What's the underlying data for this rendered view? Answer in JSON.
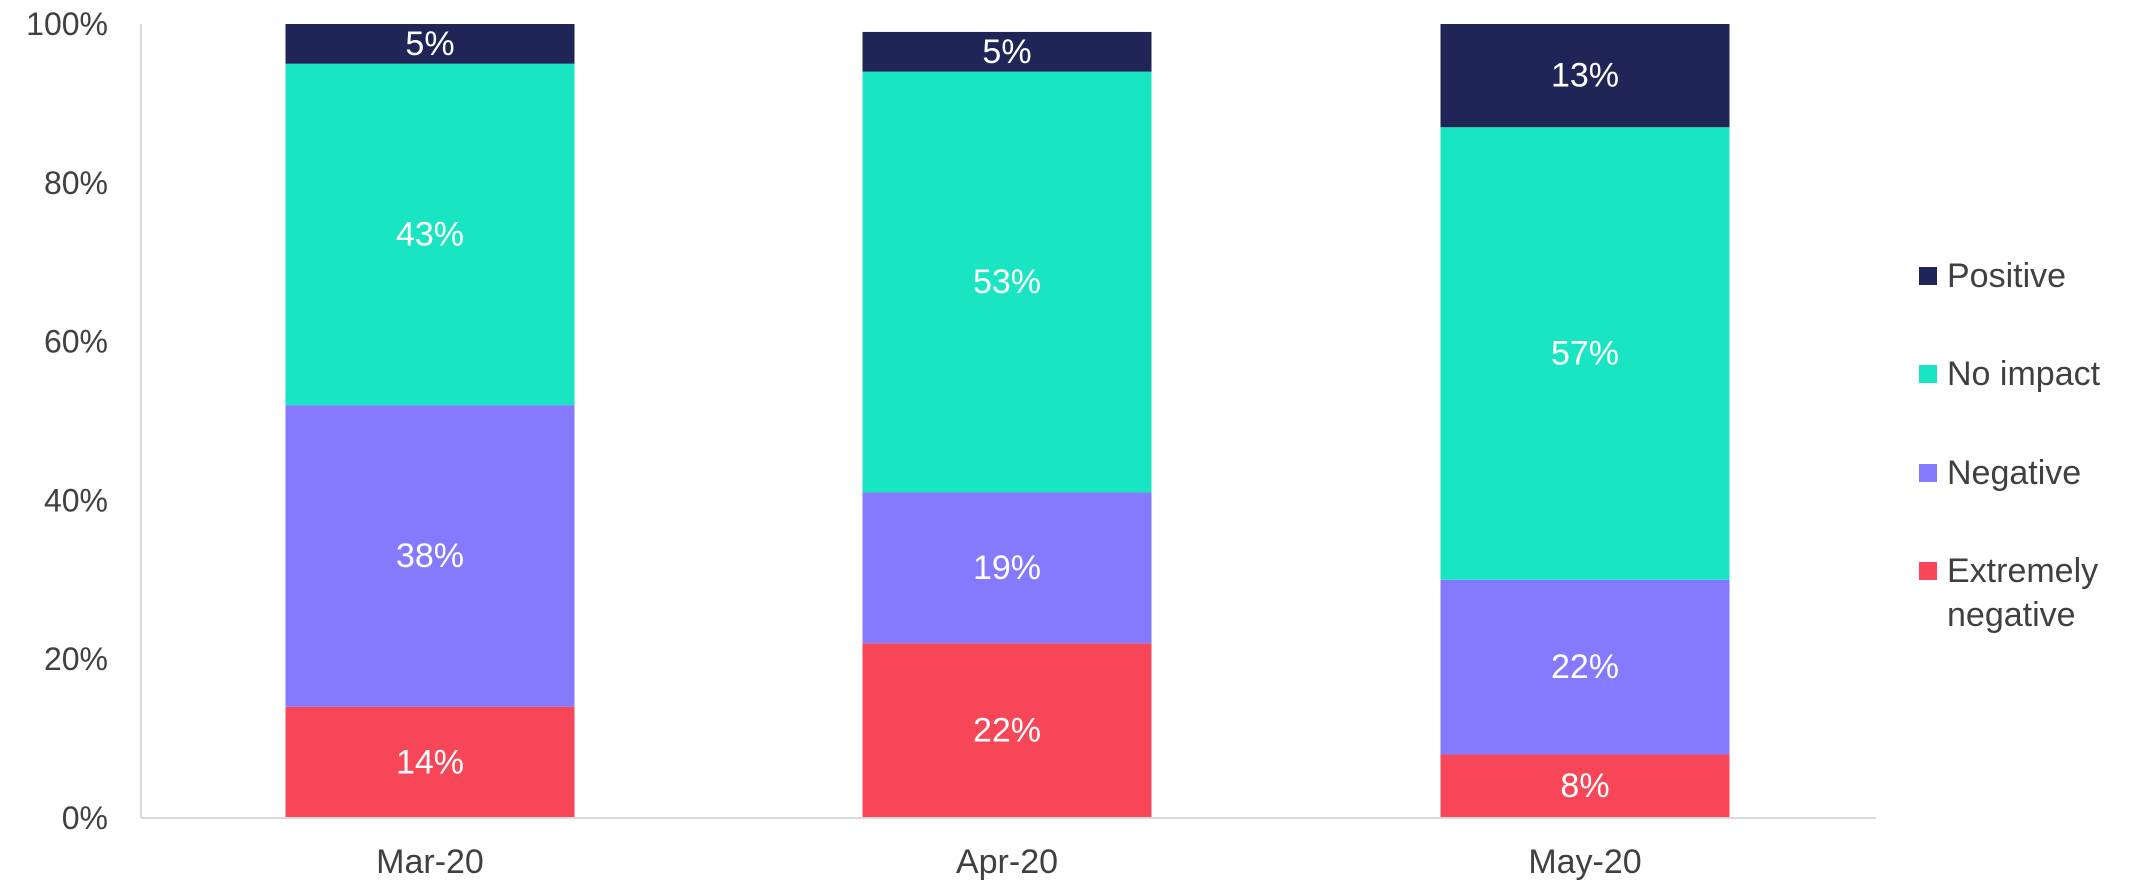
{
  "chart_data": {
    "type": "bar",
    "stacked": true,
    "title": "",
    "xlabel": "",
    "ylabel": "",
    "categories": [
      "Mar-20",
      "Apr-20",
      "May-20"
    ],
    "ylim": [
      0,
      100
    ],
    "yticks": [
      0,
      20,
      40,
      60,
      80,
      100
    ],
    "ytick_labels": [
      "0%",
      "20%",
      "40%",
      "60%",
      "80%",
      "100%"
    ],
    "grid": false,
    "legend_position": "right",
    "series": [
      {
        "name": "Extremely negative",
        "color": "#f64657",
        "values": [
          14,
          22,
          8
        ],
        "labels": [
          "14%",
          "22%",
          "8%"
        ]
      },
      {
        "name": "Negative",
        "color": "#8579fe",
        "values": [
          38,
          19,
          22
        ],
        "labels": [
          "38%",
          "19%",
          "22%"
        ]
      },
      {
        "name": "No impact",
        "color": "#1ae5c2",
        "values": [
          43,
          53,
          57
        ],
        "labels": [
          "43%",
          "53%",
          "57%"
        ]
      },
      {
        "name": "Positive",
        "color": "#1f2556",
        "values": [
          5,
          5,
          13
        ],
        "labels": [
          "5%",
          "5%",
          "13%"
        ]
      }
    ],
    "legend_order": [
      "Positive",
      "No impact",
      "Negative",
      "Extremely negative"
    ]
  }
}
